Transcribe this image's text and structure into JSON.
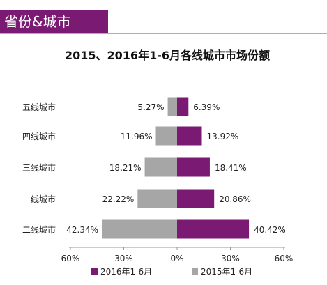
{
  "header": {
    "title": "省份&城市"
  },
  "colors": {
    "brand": "#7a1a72",
    "series2016": "#7a1a72",
    "series2015": "#a6a6a6"
  },
  "chart_data": {
    "type": "bar",
    "orientation": "horizontal-diverging",
    "title": "2015、2016年1-6月各线城市市场份额",
    "categories": [
      "五线城市",
      "四线城市",
      "三线城市",
      "一线城市",
      "二线城市"
    ],
    "series": [
      {
        "name": "2016年1-6月",
        "values": [
          6.39,
          13.92,
          18.41,
          20.86,
          40.42
        ],
        "labels": [
          "6.39%",
          "13.92%",
          "18.41%",
          "20.86%",
          "40.42%"
        ],
        "side": "right"
      },
      {
        "name": "2015年1-6月",
        "values": [
          5.27,
          11.96,
          18.21,
          22.22,
          42.34
        ],
        "labels": [
          "5.27%",
          "11.96%",
          "18.21%",
          "22.22%",
          "42.34%"
        ],
        "side": "left"
      }
    ],
    "xlim": [
      -60,
      60
    ],
    "xticks": [
      "60%",
      "30%",
      "0%",
      "30%",
      "60%"
    ],
    "xtick_values": [
      -60,
      -30,
      0,
      30,
      60
    ],
    "grid": false,
    "legend_position": "bottom"
  }
}
